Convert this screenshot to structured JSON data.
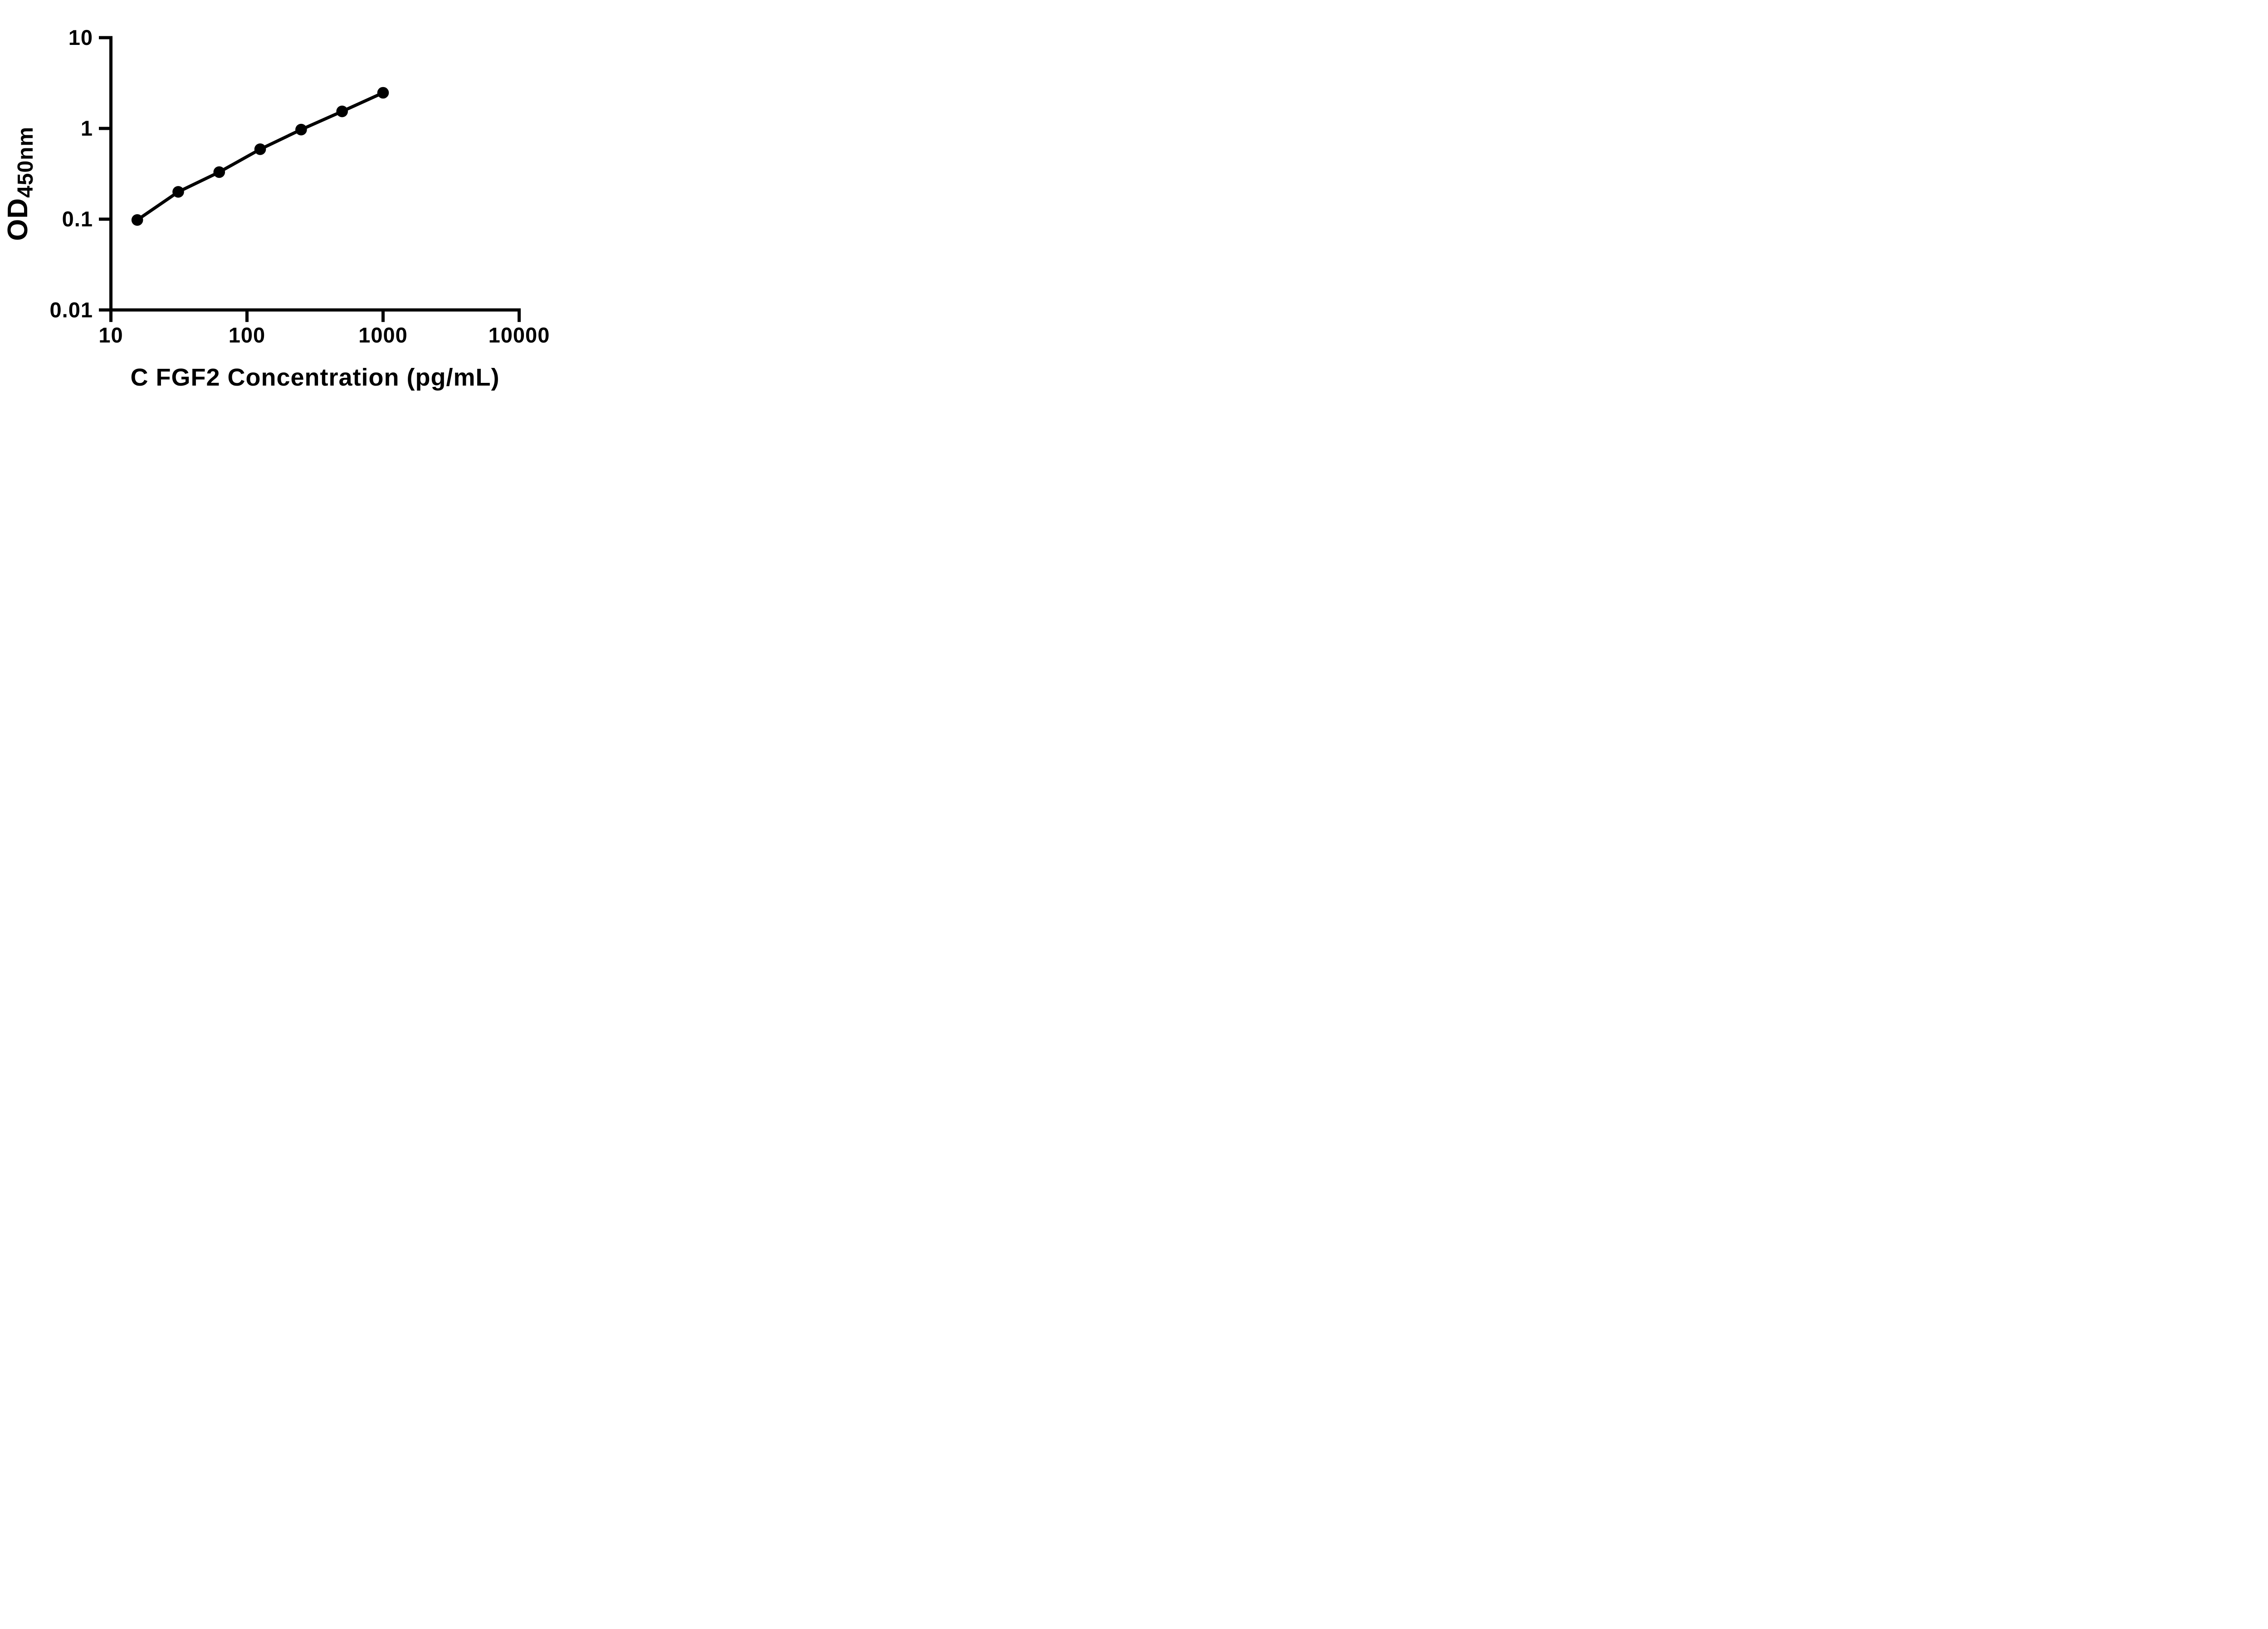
{
  "canvas": {
    "background": "#ffffff",
    "ink": "#000000"
  },
  "chart_data": {
    "type": "line",
    "title": "",
    "xlabel": "C FGF2 Concentration (pg/mL)",
    "ylabel": "OD450nm",
    "ylabel_main": "OD",
    "ylabel_subscript": "450nm",
    "x_scale": "log10",
    "y_scale": "log10",
    "xlim": [
      10,
      10000
    ],
    "ylim": [
      0.01,
      10
    ],
    "x_tick_values": [
      10,
      100,
      1000,
      10000
    ],
    "x_tick_labels": [
      "10",
      "100",
      "1000",
      "10000"
    ],
    "y_tick_values": [
      10,
      1,
      0.1,
      0.01
    ],
    "y_tick_labels": [
      "10",
      "1",
      "0.1",
      "0.01"
    ],
    "grid": false,
    "legend": "none",
    "marker_style": "filled-circle",
    "line_color": "#000000",
    "marker_color": "#000000",
    "series": [
      {
        "x": [
          15.625,
          31.25,
          62.5,
          125,
          250,
          500,
          1000
        ],
        "y": [
          0.098,
          0.2,
          0.33,
          0.59,
          0.97,
          1.54,
          2.47
        ]
      }
    ]
  }
}
